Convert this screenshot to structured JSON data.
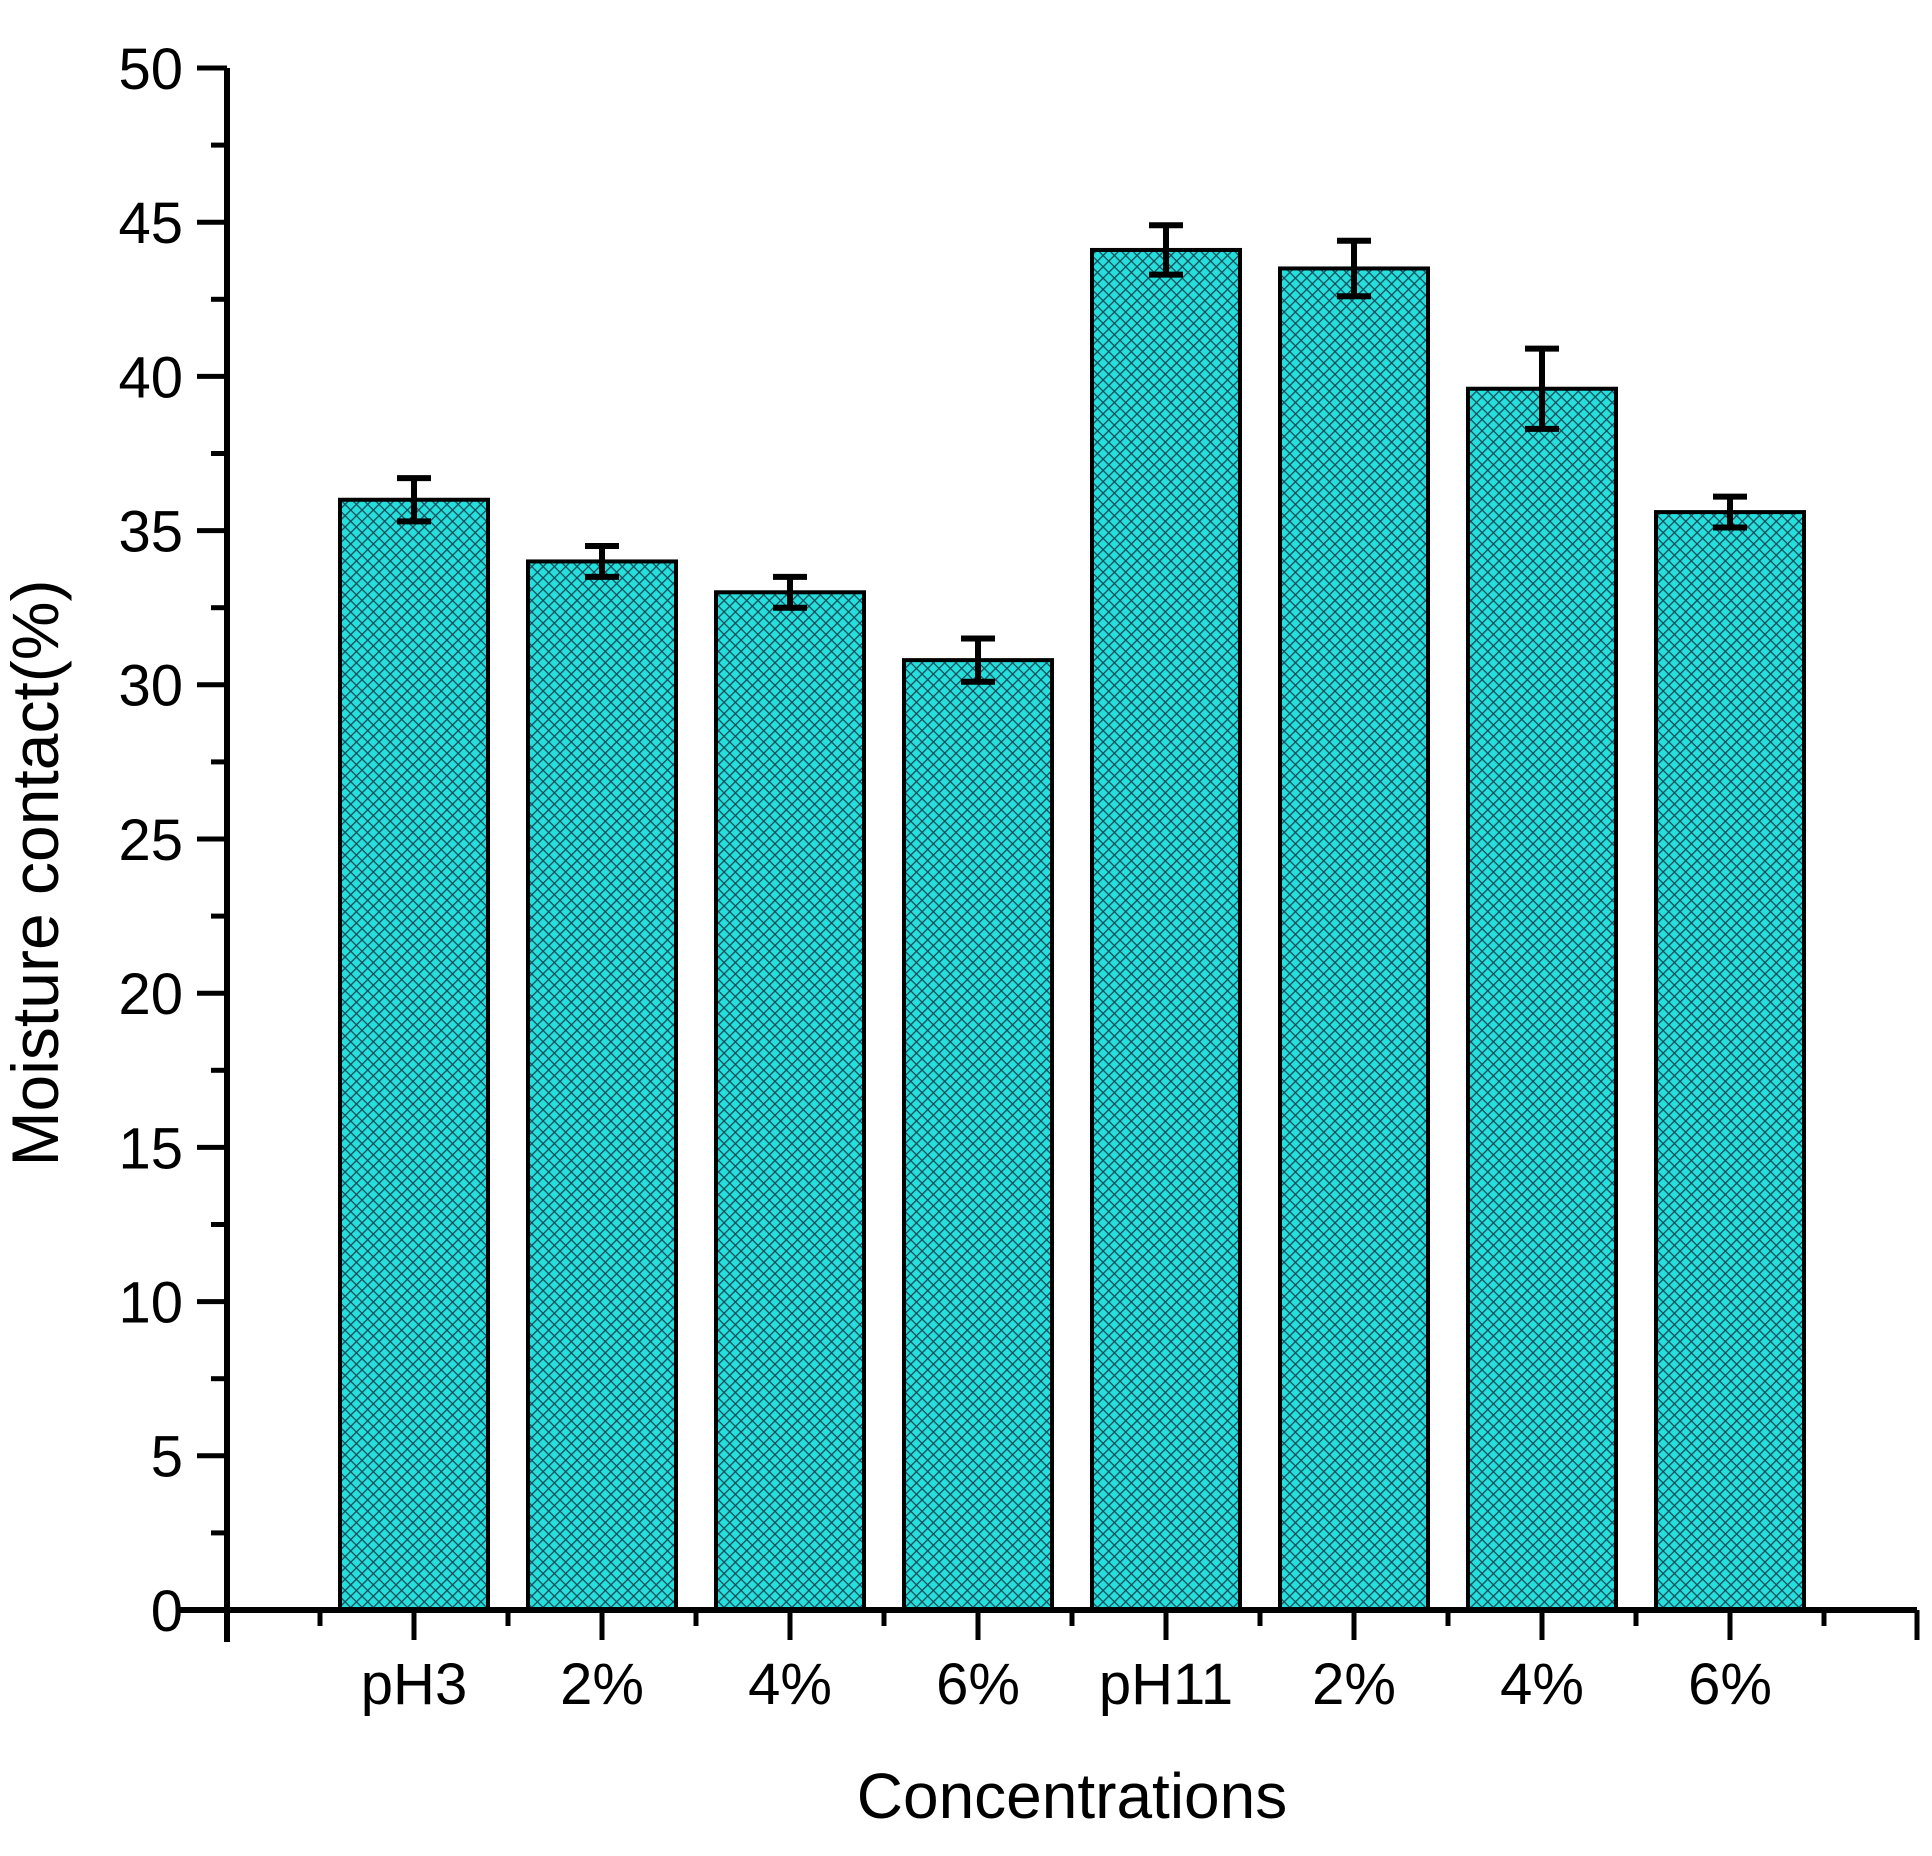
{
  "chart_data": {
    "type": "bar",
    "title": "",
    "xlabel": "Concentrations",
    "ylabel": "Moisture contact(%)",
    "categories": [
      "pH3",
      "2%",
      "4%",
      "6%",
      "pH11",
      "2%",
      "4%",
      "6%"
    ],
    "values": [
      36.0,
      34.0,
      33.0,
      30.8,
      44.1,
      43.5,
      39.6,
      35.6
    ],
    "errors": [
      0.7,
      0.5,
      0.5,
      0.7,
      0.8,
      0.9,
      1.3,
      0.5
    ],
    "ylim": [
      0,
      50
    ],
    "ytick_values": [
      0,
      5,
      10,
      15,
      20,
      25,
      30,
      35,
      40,
      45,
      50
    ],
    "ytick_labels": [
      "0",
      "5",
      "10",
      "15",
      "20",
      "25",
      "30",
      "35",
      "40",
      "45",
      "50"
    ],
    "minor_ytick_values": [
      2.5,
      7.5,
      12.5,
      17.5,
      22.5,
      27.5,
      32.5,
      37.5,
      42.5,
      47.5
    ],
    "grid": false,
    "legend": null,
    "bar_pattern": "diagonal-crosshatch",
    "colors": {
      "bar_fill": "#24DFDB",
      "hatch_line": "#1A4A58",
      "bar_border": "#000000",
      "error_bar": "#000000",
      "axis": "#000000",
      "background": "#FFFFFF"
    }
  }
}
